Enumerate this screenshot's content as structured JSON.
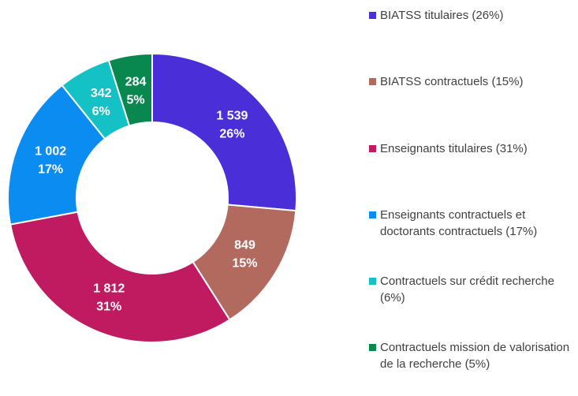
{
  "chart_data": {
    "type": "donut",
    "categories": [
      "BIATSS titulaires (26%)",
      "BIATSS contractuels (15%)",
      "Enseignants titulaires (31%)",
      "Enseignants contractuels et doctorants contractuels (17%)",
      "Contractuels sur crédit recherche (6%)",
      "Contractuels mission de valorisation de la recherche (5%)"
    ],
    "values": [
      1539,
      849,
      1812,
      1002,
      342,
      284
    ],
    "value_labels": [
      "1 539",
      "849",
      "1 812",
      "1 002",
      "342",
      "284"
    ],
    "percentages": [
      26,
      15,
      31,
      17,
      6,
      5
    ],
    "percentage_labels": [
      "26%",
      "15%",
      "31%",
      "17%",
      "6%",
      "5%"
    ],
    "colors": [
      "#4a2fd8",
      "#b36a5e",
      "#c01a60",
      "#0a8cf0",
      "#14c2c6",
      "#08874f"
    ],
    "legend": "right"
  }
}
